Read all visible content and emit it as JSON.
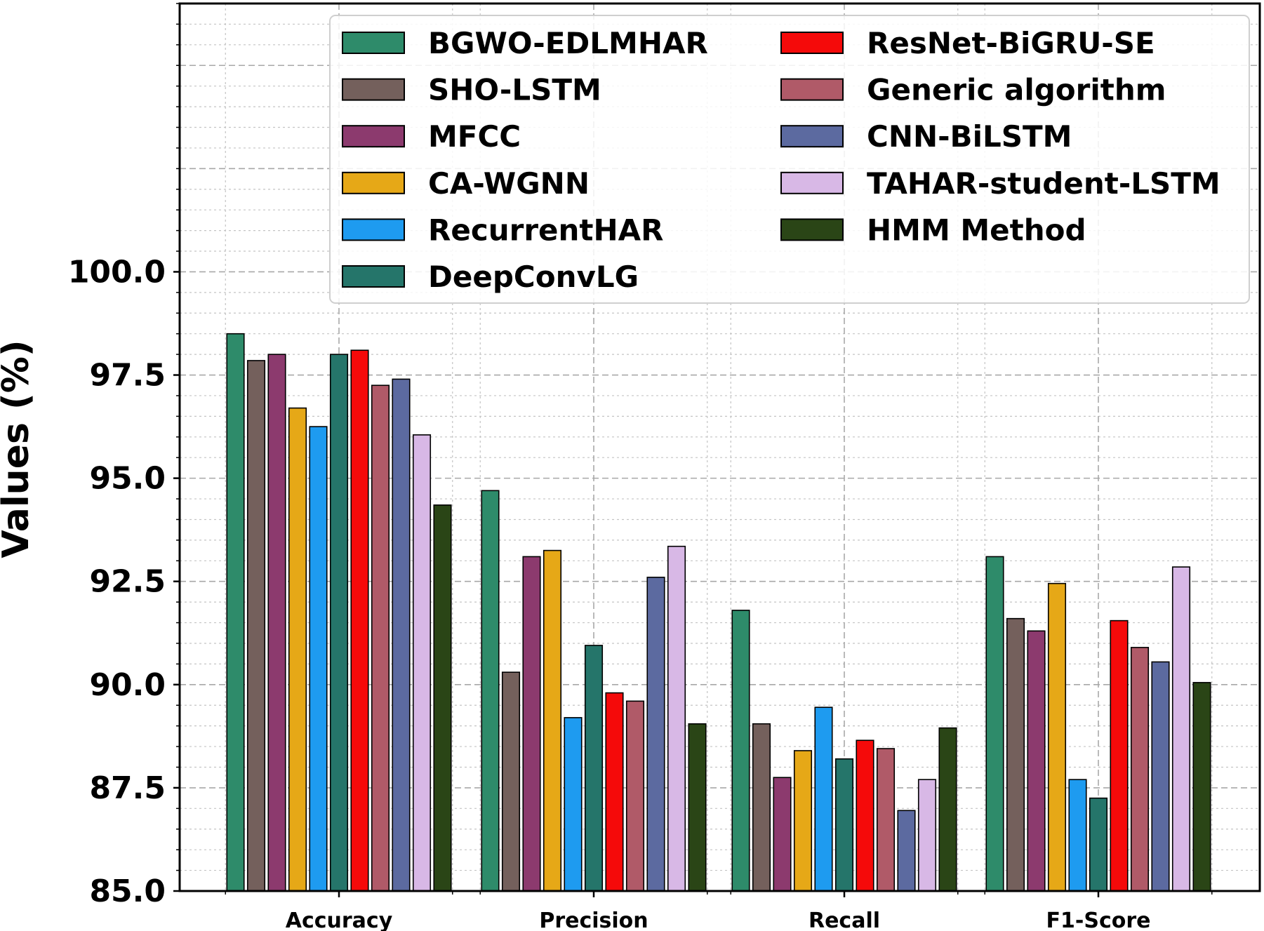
{
  "chart_data": {
    "type": "bar",
    "title": "",
    "xlabel": "",
    "ylabel": "Values (%)",
    "ylim": [
      85.0,
      106.5
    ],
    "yticks": [
      "85.0",
      "87.5",
      "90.0",
      "92.5",
      "95.0",
      "97.5",
      "100.0"
    ],
    "grid": true,
    "legend_position": "top-right",
    "categories": [
      "Accuracy",
      "Precision",
      "Recall",
      "F1-Score"
    ],
    "series": [
      {
        "name": "BGWO-EDLMHAR",
        "color": "#2e8b6a",
        "values": [
          98.5,
          94.7,
          91.8,
          93.1
        ]
      },
      {
        "name": "SHO-LSTM",
        "color": "#74605c",
        "values": [
          97.85,
          90.3,
          89.05,
          91.6
        ]
      },
      {
        "name": "MFCC",
        "color": "#8c3a6e",
        "values": [
          98.0,
          93.1,
          87.75,
          91.3
        ]
      },
      {
        "name": "CA-WGNN",
        "color": "#e6a817",
        "values": [
          96.7,
          93.25,
          88.4,
          92.45
        ]
      },
      {
        "name": "RecurrentHAR",
        "color": "#1e9bf0",
        "values": [
          96.25,
          89.2,
          89.45,
          87.7
        ]
      },
      {
        "name": "DeepConvLG",
        "color": "#25756a",
        "values": [
          98.0,
          90.95,
          88.2,
          87.25
        ]
      },
      {
        "name": "ResNet-BiGRU-SE",
        "color": "#f50a0a",
        "values": [
          98.1,
          89.8,
          88.65,
          91.55
        ]
      },
      {
        "name": "Generic algorithm",
        "color": "#b05a68",
        "values": [
          97.25,
          89.6,
          88.45,
          90.9
        ]
      },
      {
        "name": "CNN-BiLSTM",
        "color": "#5c6aa0",
        "values": [
          97.4,
          92.6,
          86.95,
          90.55
        ]
      },
      {
        "name": "TAHAR-student-LSTM",
        "color": "#d8b8e6",
        "values": [
          96.05,
          93.35,
          87.7,
          92.85
        ]
      },
      {
        "name": "HMM Method",
        "color": "#2a4516",
        "values": [
          94.35,
          89.05,
          88.95,
          90.05
        ]
      }
    ]
  }
}
